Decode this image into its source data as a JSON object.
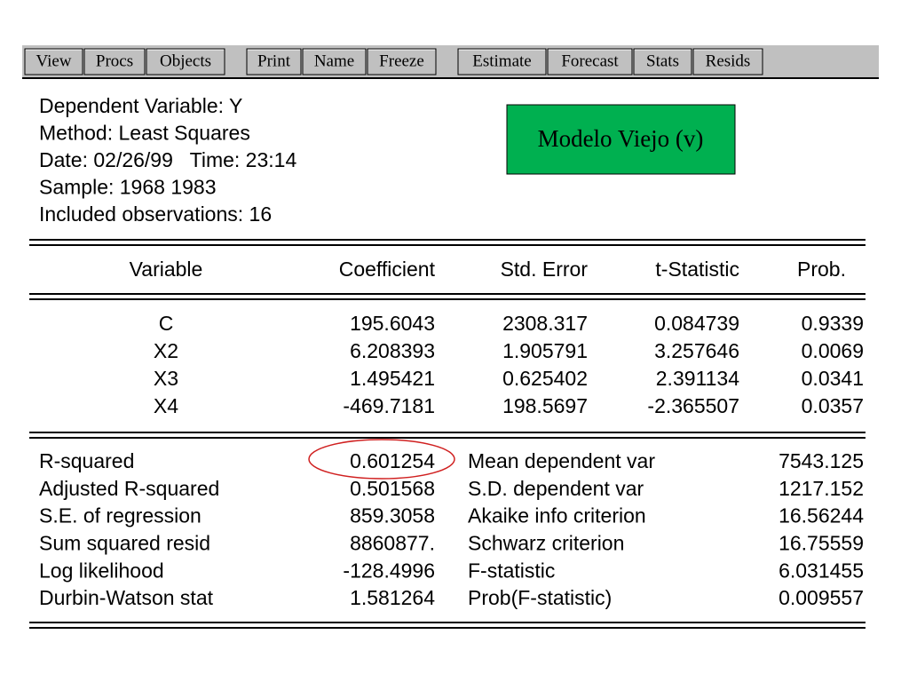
{
  "toolbar": {
    "groups": [
      [
        "View",
        "Procs",
        "Objects"
      ],
      [
        "Print",
        "Name",
        "Freeze"
      ],
      [
        "Estimate",
        "Forecast",
        "Stats",
        "Resids"
      ]
    ]
  },
  "header": {
    "lines": [
      "Dependent Variable: Y",
      "Method: Least Squares",
      "Date: 02/26/99   Time: 23:14",
      "Sample: 1968 1983",
      "Included observations: 16"
    ]
  },
  "annotation": "Modelo Viejo (v)",
  "table": {
    "columns": [
      "Variable",
      "Coefficient",
      "Std. Error",
      "t-Statistic",
      "Prob."
    ],
    "rows": [
      [
        "C",
        "195.6043",
        "2308.317",
        "0.084739",
        "0.9339"
      ],
      [
        "X2",
        "6.208393",
        "1.905791",
        "3.257646",
        "0.0069"
      ],
      [
        "X3",
        "1.495421",
        "0.625402",
        "2.391134",
        "0.0341"
      ],
      [
        "X4",
        "-469.7181",
        "198.5697",
        "-2.365507",
        "0.0357"
      ]
    ]
  },
  "statistics": {
    "rows": [
      [
        "R-squared",
        "0.601254",
        "Mean dependent var",
        "7543.125"
      ],
      [
        "Adjusted R-squared",
        "0.501568",
        "S.D. dependent var",
        "1217.152"
      ],
      [
        "S.E. of regression",
        "859.3058",
        "Akaike info criterion",
        "16.56244"
      ],
      [
        "Sum squared resid",
        "8860877.",
        "Schwarz criterion",
        "16.75559"
      ],
      [
        "Log likelihood",
        "-128.4996",
        "F-statistic",
        "6.031455"
      ],
      [
        "Durbin-Watson stat",
        "1.581264",
        "Prob(F-statistic)",
        "0.009557"
      ]
    ]
  }
}
